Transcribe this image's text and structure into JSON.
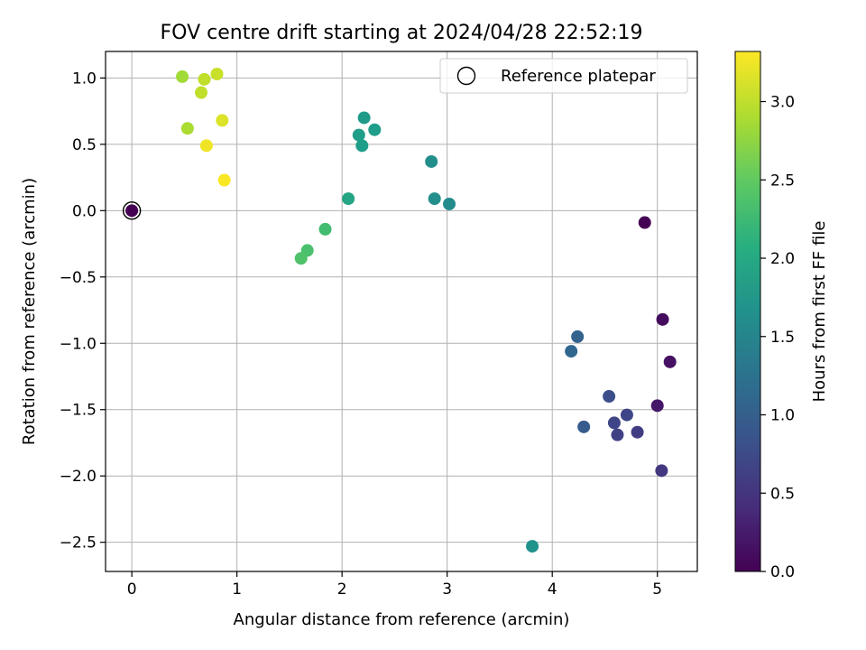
{
  "chart_data": {
    "type": "scatter",
    "title": "FOV centre drift starting at 2024/04/28 22:52:19",
    "xlabel": "Angular distance from reference (arcmin)",
    "ylabel": "Rotation from reference (arcmin)",
    "xlim": [
      -0.25,
      5.38
    ],
    "ylim": [
      -2.72,
      1.2
    ],
    "xticks": [
      0,
      1,
      2,
      3,
      4,
      5
    ],
    "xtick_labels": [
      "0",
      "1",
      "2",
      "3",
      "4",
      "5"
    ],
    "yticks": [
      -2.5,
      -2.0,
      -1.5,
      -1.0,
      -0.5,
      0.0,
      0.5,
      1.0
    ],
    "ytick_labels": [
      "−2.5",
      "−2.0",
      "−1.5",
      "−1.0",
      "−0.5",
      "0.0",
      "0.5",
      "1.0"
    ],
    "grid": true,
    "legend": {
      "position": "upper-right",
      "entries": [
        {
          "label": "Reference platepar",
          "marker": "open-circle",
          "color": "#000000"
        }
      ]
    },
    "reference_point": {
      "x": 0.0,
      "y": 0.0
    },
    "colorbar": {
      "label": "Hours from first FF file",
      "colormap": "viridis",
      "range": [
        0.0,
        3.32
      ],
      "ticks": [
        0.0,
        0.5,
        1.0,
        1.5,
        2.0,
        2.5,
        3.0
      ],
      "tick_labels": [
        "0.0",
        "0.5",
        "1.0",
        "1.5",
        "2.0",
        "2.5",
        "3.0"
      ]
    },
    "points": [
      {
        "x": 0.0,
        "y": 0.0,
        "c": 0.0
      },
      {
        "x": 4.88,
        "y": -0.09,
        "c": 0.0
      },
      {
        "x": 5.05,
        "y": -0.82,
        "c": 0.1
      },
      {
        "x": 5.12,
        "y": -1.14,
        "c": 0.15
      },
      {
        "x": 5.0,
        "y": -1.47,
        "c": 0.2
      },
      {
        "x": 5.04,
        "y": -1.96,
        "c": 0.55
      },
      {
        "x": 4.81,
        "y": -1.67,
        "c": 0.6
      },
      {
        "x": 4.62,
        "y": -1.69,
        "c": 0.65
      },
      {
        "x": 4.59,
        "y": -1.6,
        "c": 0.7
      },
      {
        "x": 4.71,
        "y": -1.54,
        "c": 0.7
      },
      {
        "x": 4.54,
        "y": -1.4,
        "c": 0.8
      },
      {
        "x": 4.3,
        "y": -1.63,
        "c": 0.95
      },
      {
        "x": 4.24,
        "y": -0.95,
        "c": 1.05
      },
      {
        "x": 4.18,
        "y": -1.06,
        "c": 1.1
      },
      {
        "x": 3.81,
        "y": -2.53,
        "c": 1.7
      },
      {
        "x": 3.02,
        "y": 0.05,
        "c": 1.6
      },
      {
        "x": 2.88,
        "y": 0.09,
        "c": 1.65
      },
      {
        "x": 2.85,
        "y": 0.37,
        "c": 1.65
      },
      {
        "x": 2.31,
        "y": 0.61,
        "c": 1.85
      },
      {
        "x": 2.21,
        "y": 0.7,
        "c": 1.8
      },
      {
        "x": 2.16,
        "y": 0.57,
        "c": 1.85
      },
      {
        "x": 2.19,
        "y": 0.49,
        "c": 1.85
      },
      {
        "x": 2.06,
        "y": 0.09,
        "c": 1.95
      },
      {
        "x": 1.84,
        "y": -0.14,
        "c": 2.3
      },
      {
        "x": 1.67,
        "y": -0.3,
        "c": 2.35
      },
      {
        "x": 1.61,
        "y": -0.36,
        "c": 2.38
      },
      {
        "x": 0.48,
        "y": 1.01,
        "c": 2.85
      },
      {
        "x": 0.53,
        "y": 0.62,
        "c": 2.9
      },
      {
        "x": 0.69,
        "y": 0.99,
        "c": 3.0
      },
      {
        "x": 0.66,
        "y": 0.89,
        "c": 3.0
      },
      {
        "x": 0.81,
        "y": 1.03,
        "c": 3.05
      },
      {
        "x": 0.86,
        "y": 0.68,
        "c": 3.15
      },
      {
        "x": 0.71,
        "y": 0.49,
        "c": 3.25
      },
      {
        "x": 0.88,
        "y": 0.23,
        "c": 3.3
      }
    ],
    "colors": {
      "grid": "#b0b0b0",
      "axis": "#000000",
      "legend_border": "#cccccc"
    }
  }
}
